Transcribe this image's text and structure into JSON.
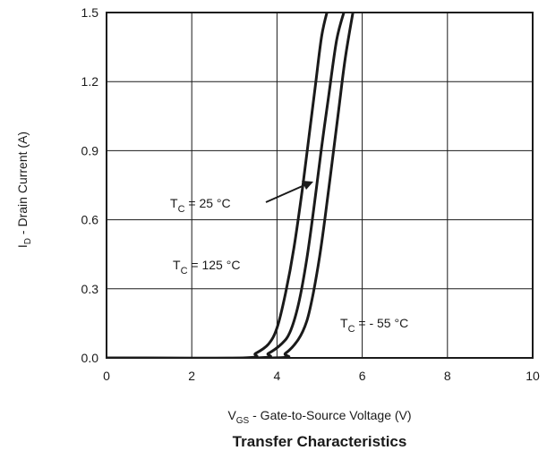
{
  "chart_data": {
    "type": "line",
    "title": "Transfer Characteristics",
    "xlabel": {
      "main": "V",
      "sub": "GS",
      "rest": " - Gate-to-Source Voltage (V)"
    },
    "ylabel": {
      "main": "I",
      "sub": "D",
      "rest": " - Drain Current (A)"
    },
    "xlim": [
      0,
      10
    ],
    "ylim": [
      0,
      1.5
    ],
    "xticks": [
      0,
      2,
      4,
      6,
      8,
      10
    ],
    "yticks": [
      0.0,
      0.3,
      0.6,
      0.9,
      1.2,
      1.5
    ],
    "ytick_labels": [
      "0.0",
      "0.3",
      "0.6",
      "0.9",
      "1.2",
      "1.5"
    ],
    "grid": true,
    "series": [
      {
        "name": "TC = 125 °C",
        "x": [
          3.2,
          3.5,
          3.8,
          4.0,
          4.2,
          4.4,
          4.6,
          4.75,
          4.9,
          5.05,
          5.2
        ],
        "y": [
          0.0,
          0.02,
          0.06,
          0.13,
          0.28,
          0.48,
          0.74,
          0.96,
          1.18,
          1.4,
          1.52
        ]
      },
      {
        "name": "TC = 25 °C",
        "x": [
          3.5,
          3.8,
          4.1,
          4.3,
          4.5,
          4.7,
          4.9,
          5.05,
          5.2,
          5.4,
          5.6
        ],
        "y": [
          0.0,
          0.02,
          0.06,
          0.11,
          0.23,
          0.43,
          0.7,
          0.92,
          1.12,
          1.38,
          1.52
        ]
      },
      {
        "name": "TC = - 55 °C",
        "x": [
          3.9,
          4.2,
          4.5,
          4.7,
          4.85,
          5.0,
          5.15,
          5.3,
          5.45,
          5.6,
          5.8
        ],
        "y": [
          0.0,
          0.02,
          0.08,
          0.16,
          0.28,
          0.44,
          0.64,
          0.86,
          1.08,
          1.3,
          1.52
        ]
      }
    ],
    "annotations": [
      {
        "main": "T",
        "sub": "C",
        "rest": " = 25 °C"
      },
      {
        "main": "T",
        "sub": "C",
        "rest": " = 125 °C"
      },
      {
        "main": "T",
        "sub": "C",
        "rest": " = - 55 °C"
      }
    ]
  }
}
